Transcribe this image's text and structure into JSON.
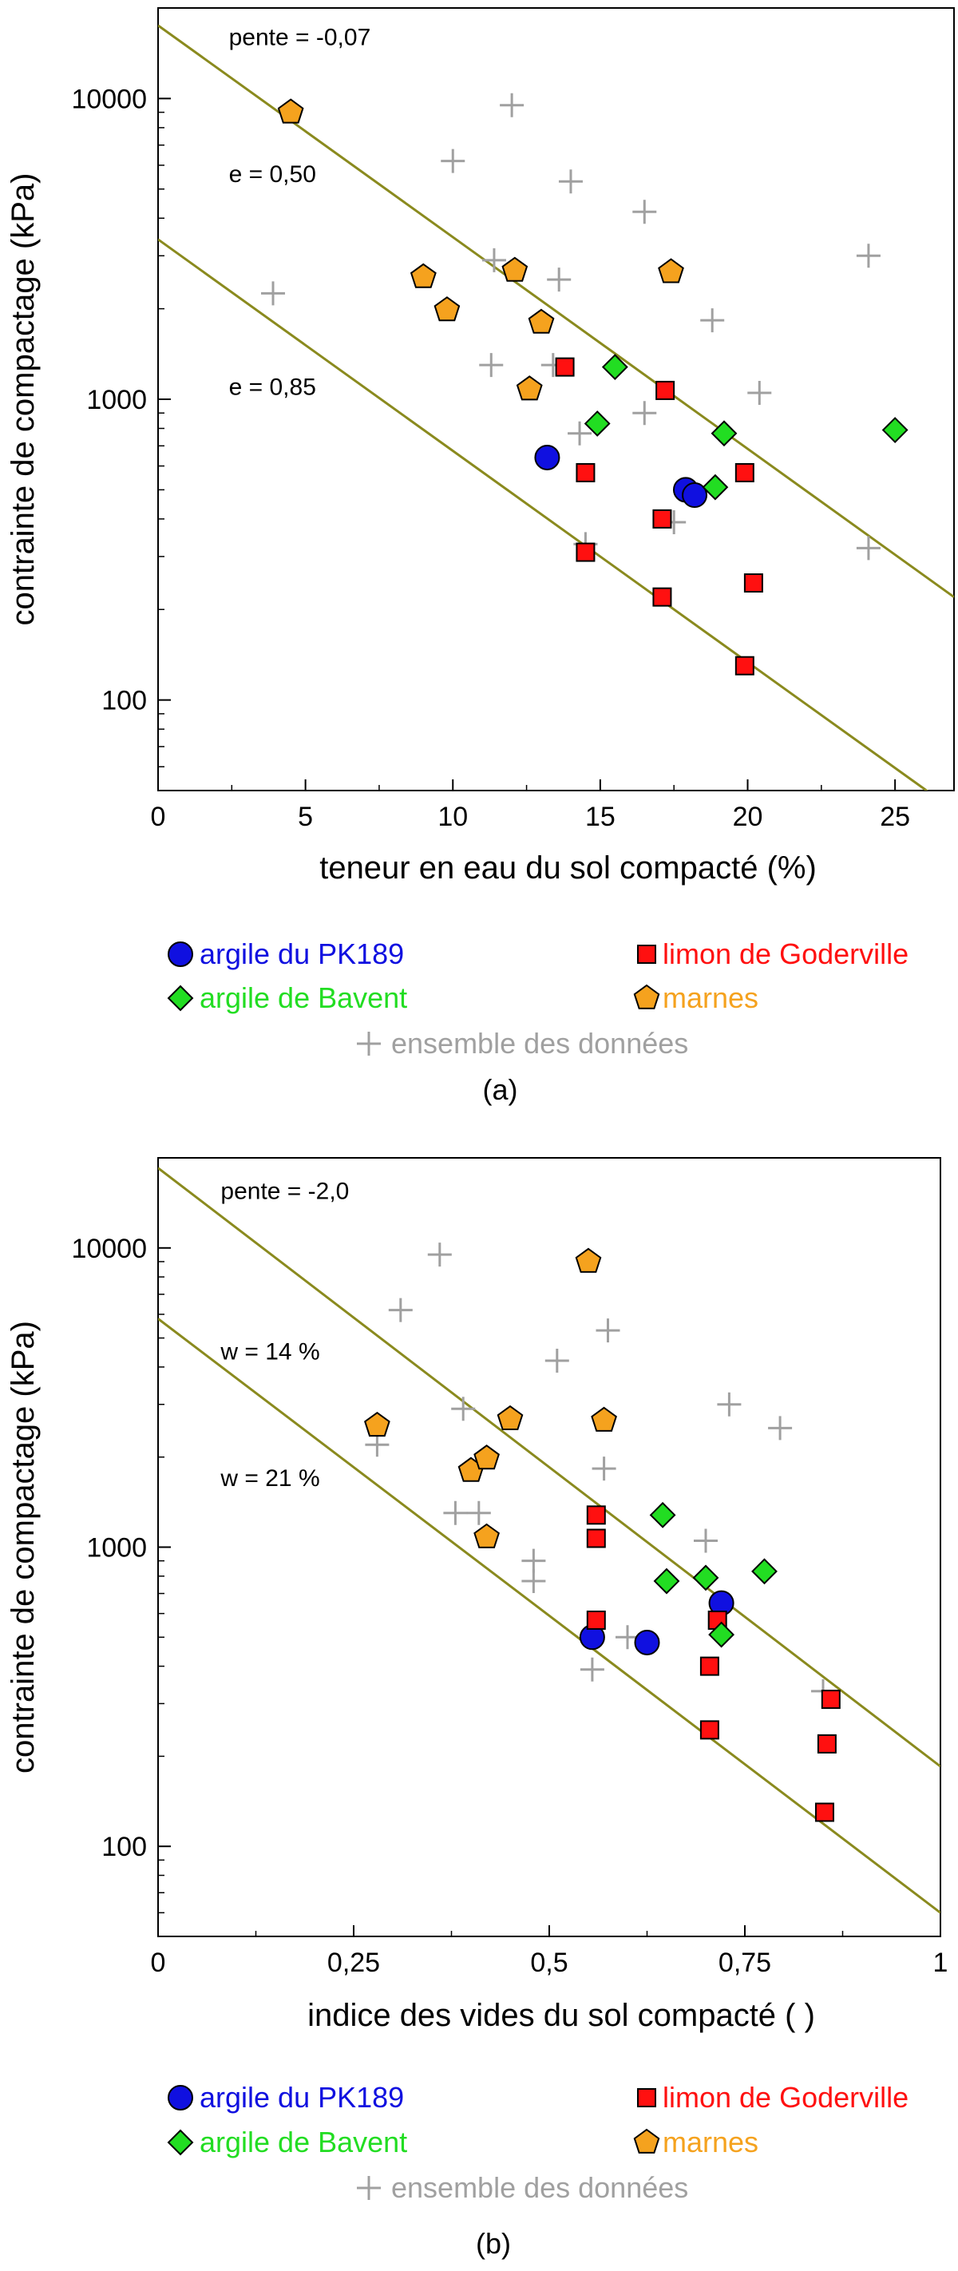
{
  "chart_data": [
    {
      "type": "scatter",
      "panel_label": "(a)",
      "xlabel": "teneur en eau du sol compacté (%)",
      "ylabel": "contrainte de compactage (kPa)",
      "x_ticks": [
        {
          "v": 0,
          "label": "0"
        },
        {
          "v": 5,
          "label": "5"
        },
        {
          "v": 10,
          "label": "10"
        },
        {
          "v": 15,
          "label": "15"
        },
        {
          "v": 20,
          "label": "20"
        },
        {
          "v": 25,
          "label": "25"
        }
      ],
      "y_ticks": [
        {
          "v": 100,
          "label": "100"
        },
        {
          "v": 1000,
          "label": "1000"
        },
        {
          "v": 10000,
          "label": "10000"
        }
      ],
      "xlim": [
        0,
        27
      ],
      "ylim": [
        50,
        20000
      ],
      "y_scale": "log",
      "grid": false,
      "annotations": [
        {
          "text": "pente = -0,07",
          "x": 2.4,
          "y": 16000
        },
        {
          "text": "e = 0,50",
          "x": 2.4,
          "y": 5600
        },
        {
          "text": "e = 0,85",
          "x": 2.4,
          "y": 1100
        }
      ],
      "lines": [
        {
          "x": [
            0,
            27
          ],
          "y": [
            17500,
            220
          ],
          "color": "#8a8a1e"
        },
        {
          "x": [
            0,
            27
          ],
          "y": [
            3400,
            43
          ],
          "color": "#8a8a1e"
        }
      ],
      "series": [
        {
          "name": "argile du PK189",
          "marker": "circle",
          "color": "#1010e0",
          "points": [
            [
              13.2,
              640
            ],
            [
              17.9,
              500
            ],
            [
              18.2,
              480
            ]
          ]
        },
        {
          "name": "limon de Goderville",
          "marker": "square",
          "color": "#ff1010",
          "points": [
            [
              13.8,
              1280
            ],
            [
              14.5,
              570
            ],
            [
              14.5,
              310
            ],
            [
              17.1,
              400
            ],
            [
              17.2,
              1070
            ],
            [
              17.1,
              220
            ],
            [
              19.9,
              570
            ],
            [
              20.2,
              245
            ],
            [
              19.9,
              130
            ]
          ]
        },
        {
          "name": "argile de Bavent",
          "marker": "diamond",
          "color": "#22dd22",
          "points": [
            [
              15.5,
              1280
            ],
            [
              14.9,
              830
            ],
            [
              19.2,
              770
            ],
            [
              18.9,
              510
            ],
            [
              25.0,
              790
            ]
          ]
        },
        {
          "name": "marnes",
          "marker": "pentagon",
          "color": "#f5a21e",
          "points": [
            [
              4.5,
              9000
            ],
            [
              9.0,
              2550
            ],
            [
              9.8,
              1980
            ],
            [
              12.1,
              2680
            ],
            [
              13.0,
              1800
            ],
            [
              12.6,
              1080
            ],
            [
              17.4,
              2650
            ]
          ]
        },
        {
          "name": "ensemble des données",
          "marker": "plus",
          "color": "#a0a0a0",
          "points": [
            [
              3.9,
              2250
            ],
            [
              10.0,
              6200
            ],
            [
              12.0,
              9500
            ],
            [
              11.4,
              2900
            ],
            [
              11.3,
              1300
            ],
            [
              13.4,
              1300
            ],
            [
              13.6,
              2500
            ],
            [
              14.0,
              5300
            ],
            [
              14.3,
              770
            ],
            [
              16.5,
              4200
            ],
            [
              16.5,
              900
            ],
            [
              17.5,
              390
            ],
            [
              18.8,
              1830
            ],
            [
              20.4,
              1050
            ],
            [
              24.1,
              3000
            ],
            [
              24.1,
              320
            ],
            [
              14.5,
              330
            ]
          ]
        }
      ]
    },
    {
      "type": "scatter",
      "panel_label": "(b)",
      "xlabel": "indice des vides du sol compacté  ( )",
      "ylabel": "contrainte de compactage (kPa)",
      "x_ticks": [
        {
          "v": 0,
          "label": "0"
        },
        {
          "v": 0.25,
          "label": "0,25"
        },
        {
          "v": 0.5,
          "label": "0,5"
        },
        {
          "v": 0.75,
          "label": "0,75"
        },
        {
          "v": 1,
          "label": "1"
        }
      ],
      "y_ticks": [
        {
          "v": 100,
          "label": "100"
        },
        {
          "v": 1000,
          "label": "1000"
        },
        {
          "v": 10000,
          "label": "10000"
        }
      ],
      "xlim": [
        0,
        1
      ],
      "ylim": [
        50,
        20000
      ],
      "y_scale": "log",
      "grid": false,
      "annotations": [
        {
          "text": "pente = -2,0",
          "x": 0.08,
          "y": 15500
        },
        {
          "text": "w = 14 %",
          "x": 0.08,
          "y": 4500
        },
        {
          "text": "w = 21 %",
          "x": 0.08,
          "y": 1700
        }
      ],
      "lines": [
        {
          "x": [
            0,
            1
          ],
          "y": [
            18500,
            185
          ],
          "color": "#8a8a1e"
        },
        {
          "x": [
            0,
            1
          ],
          "y": [
            5800,
            60
          ],
          "color": "#8a8a1e"
        }
      ],
      "series": [
        {
          "name": "argile du PK189",
          "marker": "circle",
          "color": "#1010e0",
          "points": [
            [
              0.555,
              500
            ],
            [
              0.625,
              480
            ],
            [
              0.72,
              650
            ]
          ]
        },
        {
          "name": "limon de Goderville",
          "marker": "square",
          "color": "#ff1010",
          "points": [
            [
              0.56,
              1280
            ],
            [
              0.56,
              1070
            ],
            [
              0.56,
              570
            ],
            [
              0.705,
              400
            ],
            [
              0.705,
              245
            ],
            [
              0.715,
              570
            ],
            [
              0.86,
              310
            ],
            [
              0.855,
              220
            ],
            [
              0.852,
              130
            ]
          ]
        },
        {
          "name": "argile de Bavent",
          "marker": "diamond",
          "color": "#22dd22",
          "points": [
            [
              0.645,
              1280
            ],
            [
              0.65,
              770
            ],
            [
              0.7,
              790
            ],
            [
              0.72,
              510
            ],
            [
              0.775,
              830
            ]
          ]
        },
        {
          "name": "marnes",
          "marker": "pentagon",
          "color": "#f5a21e",
          "points": [
            [
              0.28,
              2550
            ],
            [
              0.4,
              1800
            ],
            [
              0.42,
              1980
            ],
            [
              0.42,
              1080
            ],
            [
              0.45,
              2680
            ],
            [
              0.55,
              9000
            ],
            [
              0.57,
              2650
            ]
          ]
        },
        {
          "name": "ensemble des données",
          "marker": "plus",
          "color": "#a0a0a0",
          "points": [
            [
              0.28,
              2200
            ],
            [
              0.31,
              6200
            ],
            [
              0.36,
              9500
            ],
            [
              0.39,
              2900
            ],
            [
              0.38,
              1300
            ],
            [
              0.41,
              1300
            ],
            [
              0.48,
              900
            ],
            [
              0.48,
              770
            ],
            [
              0.51,
              4200
            ],
            [
              0.575,
              5300
            ],
            [
              0.57,
              1830
            ],
            [
              0.6,
              500
            ],
            [
              0.555,
              390
            ],
            [
              0.7,
              1050
            ],
            [
              0.73,
              3000
            ],
            [
              0.795,
              2500
            ],
            [
              0.85,
              330
            ]
          ]
        }
      ]
    }
  ]
}
